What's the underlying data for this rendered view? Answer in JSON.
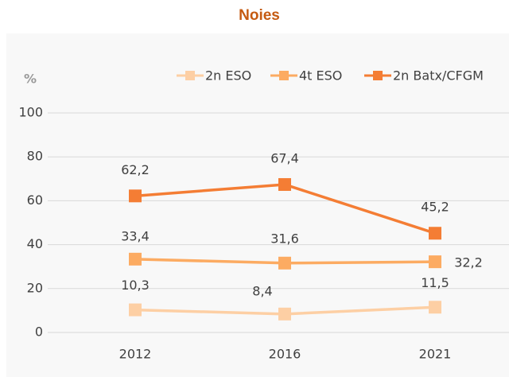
{
  "chart_data": {
    "type": "line",
    "title": "Noies",
    "y_label": "%",
    "categories": [
      "2012",
      "2016",
      "2021"
    ],
    "series": [
      {
        "name": "2n ESO",
        "color": "#fdcfa4",
        "values": [
          10.3,
          8.4,
          11.5
        ],
        "value_labels": [
          "10,3",
          "8,4",
          "11,5"
        ]
      },
      {
        "name": "4t ESO",
        "color": "#fcab62",
        "values": [
          33.4,
          31.6,
          32.2
        ],
        "value_labels": [
          "33,4",
          "31,6",
          "32,2"
        ]
      },
      {
        "name": "2n Batx/CFGM",
        "color": "#f47d34",
        "values": [
          62.2,
          67.4,
          45.2
        ],
        "value_labels": [
          "62,2",
          "67,4",
          "45,2"
        ]
      }
    ],
    "ylim": [
      0,
      100
    ],
    "yticks": [
      0,
      20,
      40,
      60,
      80,
      100
    ],
    "grid": true,
    "legend": "top"
  }
}
